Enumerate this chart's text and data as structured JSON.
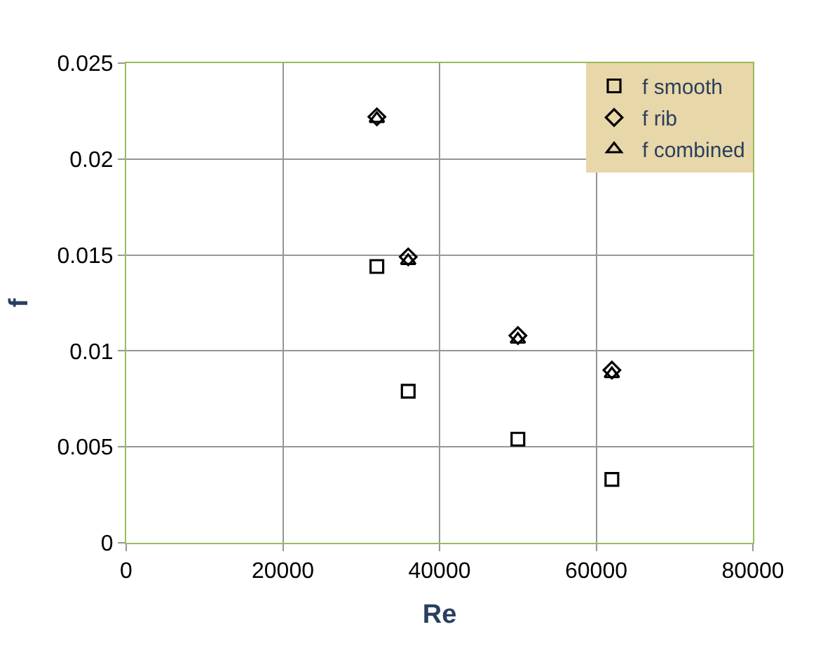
{
  "chart_data": {
    "type": "scatter",
    "xlabel": "Re",
    "ylabel": "f",
    "x": [
      32000,
      36000,
      50000,
      62000
    ],
    "series": [
      {
        "name": "f smooth",
        "color": "#000000",
        "marker": "square",
        "values": [
          0.0144,
          0.0079,
          0.0054,
          0.0033
        ]
      },
      {
        "name": "f rib",
        "color": "#000000",
        "marker": "diamond",
        "values": [
          0.0222,
          0.0149,
          0.0108,
          0.009
        ]
      },
      {
        "name": "f combined",
        "color": "#000000",
        "marker": "triangle",
        "values": [
          0.0221,
          0.0147,
          0.0106,
          0.0088
        ]
      }
    ],
    "xlim": [
      0,
      80000
    ],
    "xticks": [
      0,
      20000,
      40000,
      60000,
      80000
    ],
    "ylim": [
      0,
      0.025
    ],
    "yticks": [
      0,
      0.005,
      0.01,
      0.015,
      0.02,
      0.025
    ],
    "grid": true,
    "legend": "top right"
  }
}
